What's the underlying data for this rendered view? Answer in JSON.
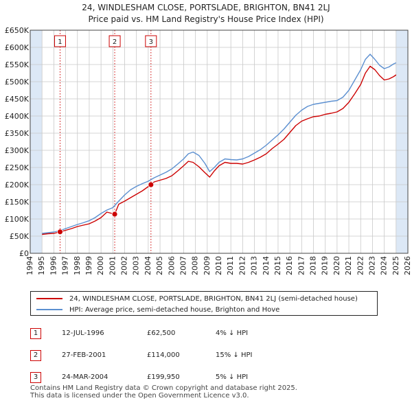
{
  "title_line1": "24, WINDLESHAM CLOSE, PORTSLADE, BRIGHTON, BN41 2LJ",
  "title_line2": "Price paid vs. HM Land Registry's House Price Index (HPI)",
  "colors": {
    "property": "#cc0000",
    "hpi": "#5b8fd0",
    "shade": "#dce8f6",
    "grid": "#c8c8c8",
    "marker": "#cc0000"
  },
  "chart_data": {
    "type": "line",
    "title": "Price paid vs. HM Land Registry's House Price Index (HPI)",
    "xlabel": "",
    "ylabel": "",
    "xlim": [
      1994,
      2026
    ],
    "ylim": [
      0,
      650000
    ],
    "x_ticks": [
      "1994",
      "1995",
      "1996",
      "1997",
      "1998",
      "1999",
      "2000",
      "2001",
      "2002",
      "2003",
      "2004",
      "2005",
      "2006",
      "2007",
      "2008",
      "2009",
      "2010",
      "2011",
      "2012",
      "2013",
      "2014",
      "2015",
      "2016",
      "2017",
      "2018",
      "2019",
      "2020",
      "2021",
      "2022",
      "2023",
      "2024",
      "2025",
      "2026"
    ],
    "y_ticks": [
      {
        "value": 0,
        "label": "£0"
      },
      {
        "value": 50000,
        "label": "£50K"
      },
      {
        "value": 100000,
        "label": "£100K"
      },
      {
        "value": 150000,
        "label": "£150K"
      },
      {
        "value": 200000,
        "label": "£200K"
      },
      {
        "value": 250000,
        "label": "£250K"
      },
      {
        "value": 300000,
        "label": "£300K"
      },
      {
        "value": 350000,
        "label": "£350K"
      },
      {
        "value": 400000,
        "label": "£400K"
      },
      {
        "value": 450000,
        "label": "£450K"
      },
      {
        "value": 500000,
        "label": "£500K"
      },
      {
        "value": 550000,
        "label": "£550K"
      },
      {
        "value": 600000,
        "label": "£600K"
      },
      {
        "value": 650000,
        "label": "£650K"
      }
    ],
    "shaded_ranges": [
      [
        1994,
        1995.0
      ],
      [
        2025.0,
        2026
      ]
    ],
    "series": [
      {
        "name": "24, WINDLESHAM CLOSE, PORTSLADE, BRIGHTON, BN41 2LJ (semi-detached house)",
        "color": "#cc0000",
        "x": [
          1995.0,
          1995.5,
          1996.0,
          1996.53,
          1997.0,
          1997.5,
          1998.0,
          1998.5,
          1999.0,
          1999.5,
          2000.0,
          2000.5,
          2001.16,
          2001.5,
          2002.0,
          2002.5,
          2003.0,
          2003.5,
          2004.23,
          2004.5,
          2005.0,
          2005.5,
          2006.0,
          2006.5,
          2007.0,
          2007.4,
          2007.8,
          2008.3,
          2008.8,
          2009.2,
          2009.6,
          2010.0,
          2010.5,
          2011.0,
          2011.5,
          2012.0,
          2012.5,
          2013.0,
          2013.5,
          2014.0,
          2014.5,
          2015.0,
          2015.5,
          2016.0,
          2016.5,
          2017.0,
          2017.5,
          2018.0,
          2018.5,
          2019.0,
          2019.5,
          2020.0,
          2020.5,
          2021.0,
          2021.5,
          2022.0,
          2022.4,
          2022.8,
          2023.2,
          2023.6,
          2024.0,
          2024.4,
          2024.8,
          2025.0
        ],
        "y": [
          55000,
          57000,
          58000,
          62500,
          67000,
          72000,
          78000,
          82000,
          86000,
          94000,
          104000,
          120000,
          114000,
          143000,
          152000,
          162000,
          172000,
          182000,
          199950,
          208000,
          213000,
          218000,
          226000,
          240000,
          255000,
          268000,
          265000,
          252000,
          235000,
          222000,
          240000,
          255000,
          265000,
          262000,
          262000,
          260000,
          265000,
          272000,
          280000,
          290000,
          305000,
          318000,
          332000,
          352000,
          372000,
          385000,
          392000,
          398000,
          400000,
          405000,
          408000,
          412000,
          422000,
          440000,
          465000,
          492000,
          525000,
          545000,
          535000,
          518000,
          505000,
          508000,
          515000,
          520000
        ]
      },
      {
        "name": "HPI: Average price, semi-detached house, Brighton and Hove",
        "color": "#5b8fd0",
        "x": [
          1995.0,
          1995.5,
          1996.0,
          1996.5,
          1997.0,
          1997.5,
          1998.0,
          1998.5,
          1999.0,
          1999.5,
          2000.0,
          2000.5,
          2001.0,
          2001.5,
          2002.0,
          2002.5,
          2003.0,
          2003.5,
          2004.0,
          2004.5,
          2005.0,
          2005.5,
          2006.0,
          2006.5,
          2007.0,
          2007.4,
          2007.8,
          2008.3,
          2008.8,
          2009.2,
          2009.6,
          2010.0,
          2010.5,
          2011.0,
          2011.5,
          2012.0,
          2012.5,
          2013.0,
          2013.5,
          2014.0,
          2014.5,
          2015.0,
          2015.5,
          2016.0,
          2016.5,
          2017.0,
          2017.5,
          2018.0,
          2018.5,
          2019.0,
          2019.5,
          2020.0,
          2020.5,
          2021.0,
          2021.5,
          2022.0,
          2022.4,
          2022.8,
          2023.2,
          2023.6,
          2024.0,
          2024.4,
          2024.8,
          2025.0
        ],
        "y": [
          58000,
          60000,
          62000,
          66000,
          72000,
          78000,
          84000,
          89000,
          95000,
          104000,
          116000,
          126000,
          133000,
          152000,
          170000,
          185000,
          195000,
          203000,
          210000,
          220000,
          228000,
          236000,
          246000,
          260000,
          275000,
          290000,
          295000,
          285000,
          262000,
          238000,
          250000,
          265000,
          275000,
          273000,
          272000,
          275000,
          282000,
          292000,
          302000,
          315000,
          330000,
          345000,
          362000,
          382000,
          402000,
          417000,
          428000,
          434000,
          437000,
          440000,
          443000,
          445000,
          455000,
          475000,
          505000,
          535000,
          565000,
          580000,
          565000,
          548000,
          538000,
          543000,
          552000,
          555000
        ]
      }
    ],
    "sales_markers": [
      {
        "label": "1",
        "x": 1996.53,
        "y": 62500
      },
      {
        "label": "2",
        "x": 2001.16,
        "y": 114000
      },
      {
        "label": "3",
        "x": 2004.23,
        "y": 199950
      }
    ]
  },
  "legend": {
    "property": "24, WINDLESHAM CLOSE, PORTSLADE, BRIGHTON, BN41 2LJ (semi-detached house)",
    "hpi": "HPI: Average price, semi-detached house, Brighton and Hove"
  },
  "sales": [
    {
      "num": "1",
      "date": "12-JUL-1996",
      "price": "£62,500",
      "hpi": "4% ↓ HPI"
    },
    {
      "num": "2",
      "date": "27-FEB-2001",
      "price": "£114,000",
      "hpi": "15% ↓ HPI"
    },
    {
      "num": "3",
      "date": "24-MAR-2004",
      "price": "£199,950",
      "hpi": "5% ↓ HPI"
    }
  ],
  "footer": {
    "line1": "Contains HM Land Registry data © Crown copyright and database right 2025.",
    "line2": "This data is licensed under the Open Government Licence v3.0."
  }
}
